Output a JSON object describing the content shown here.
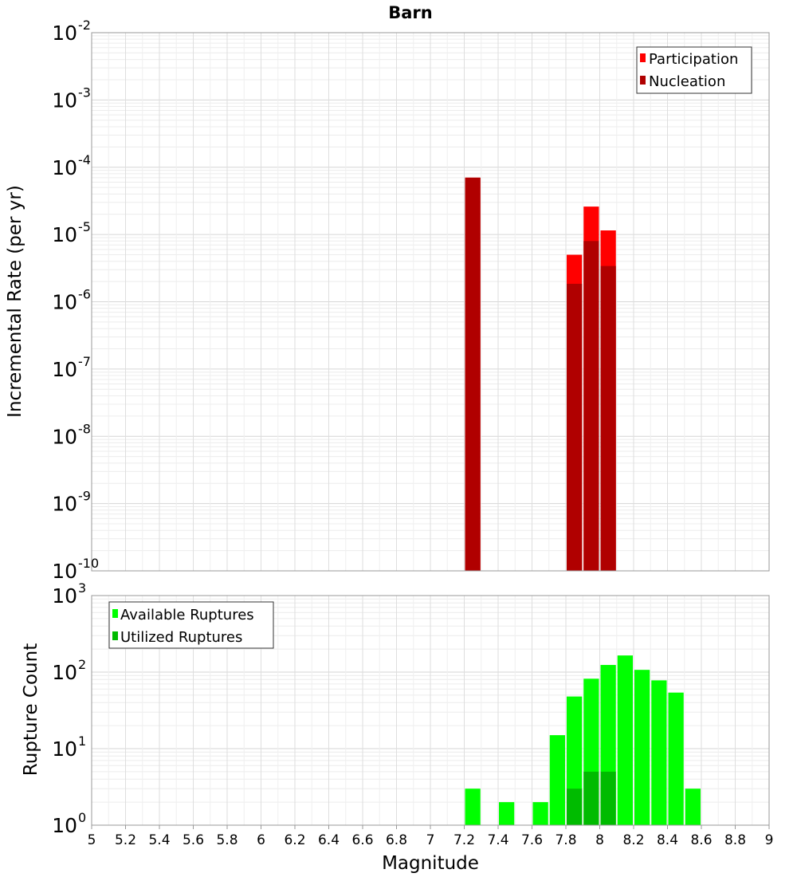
{
  "chart_data": [
    {
      "type": "bar",
      "title": "Barn",
      "xlabel": "",
      "ylabel": "Incremental Rate (per yr)",
      "yscale": "log",
      "ylim_exponents": [
        -10,
        -2
      ],
      "xlim": [
        5,
        9
      ],
      "legend_position": "top-right",
      "colors": {
        "Participation": "#ff0000",
        "Nucleation": "#b00000"
      },
      "series": [
        {
          "name": "Participation",
          "x": [
            7.25,
            7.85,
            7.95,
            8.05
          ],
          "values": [
            7e-05,
            5e-06,
            2.6e-05,
            1.15e-05
          ]
        },
        {
          "name": "Nucleation",
          "x": [
            7.25,
            7.85,
            7.95,
            8.05
          ],
          "values": [
            7e-05,
            1.85e-06,
            8e-06,
            3.4e-06
          ]
        }
      ]
    },
    {
      "type": "bar",
      "title": "",
      "xlabel": "Magnitude",
      "ylabel": "Rupture Count",
      "yscale": "log",
      "ylim_exponents": [
        0,
        3
      ],
      "xlim": [
        5,
        9
      ],
      "xticks": [
        "5",
        "5.2",
        "5.4",
        "5.6",
        "5.8",
        "6",
        "6.2",
        "6.4",
        "6.6",
        "6.8",
        "7",
        "7.2",
        "7.4",
        "7.6",
        "7.8",
        "8",
        "8.2",
        "8.4",
        "8.6",
        "8.8",
        "9"
      ],
      "legend_position": "top-left",
      "colors": {
        "Available Ruptures": "#00ff00",
        "Utilized Ruptures": "#00bb00"
      },
      "series": [
        {
          "name": "Available Ruptures",
          "x": [
            7.25,
            7.45,
            7.55,
            7.65,
            7.75,
            7.85,
            7.95,
            8.05,
            8.15,
            8.25,
            8.35,
            8.45,
            8.55
          ],
          "values": [
            3,
            2,
            1,
            2,
            15,
            48,
            82,
            124,
            165,
            107,
            78,
            54,
            3
          ]
        },
        {
          "name": "Utilized Ruptures",
          "x": [
            7.25,
            7.85,
            7.95,
            8.05
          ],
          "values": [
            1,
            3,
            5,
            5
          ]
        }
      ]
    }
  ]
}
